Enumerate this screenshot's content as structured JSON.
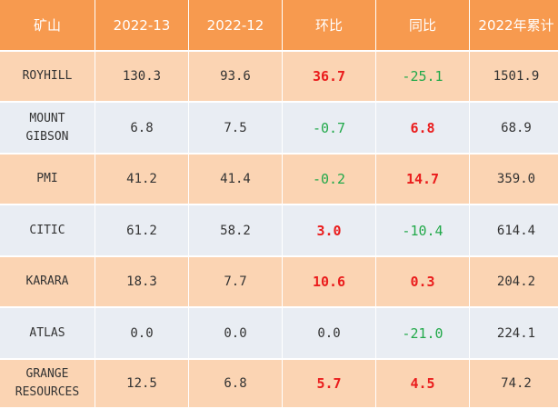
{
  "table": {
    "headers": [
      "矿山",
      "2022-13",
      "2022-12",
      "环比",
      "同比",
      "2022年累计"
    ],
    "rows": [
      {
        "name": [
          "ROYHILL"
        ],
        "v13": "130.3",
        "v12": "93.6",
        "hb": "36.7",
        "tb": "-25.1",
        "cum": "1501.9"
      },
      {
        "name": [
          "MOUNT",
          "GIBSON"
        ],
        "v13": "6.8",
        "v12": "7.5",
        "hb": "-0.7",
        "tb": "6.8",
        "cum": "68.9"
      },
      {
        "name": [
          "PMI"
        ],
        "v13": "41.2",
        "v12": "41.4",
        "hb": "-0.2",
        "tb": "14.7",
        "cum": "359.0"
      },
      {
        "name": [
          "CITIC"
        ],
        "v13": "61.2",
        "v12": "58.2",
        "hb": "3.0",
        "tb": "-10.4",
        "cum": "614.4"
      },
      {
        "name": [
          "KARARA"
        ],
        "v13": "18.3",
        "v12": "7.7",
        "hb": "10.6",
        "tb": "0.3",
        "cum": "204.2"
      },
      {
        "name": [
          "ATLAS"
        ],
        "v13": "0.0",
        "v12": "0.0",
        "hb": "0.0",
        "tb": "-21.0",
        "cum": "224.1"
      },
      {
        "name": [
          "GRANGE",
          "RESOURCES"
        ],
        "v13": "12.5",
        "v12": "6.8",
        "hb": "5.7",
        "tb": "4.5",
        "cum": "74.2"
      }
    ]
  },
  "colors": {
    "header_bg": "#f79a4f",
    "row_odd_bg": "#fbd4b3",
    "row_even_bg": "#e9edf3",
    "positive": "#ea1c1c",
    "negative": "#22a94a",
    "neutral": "#333333"
  }
}
